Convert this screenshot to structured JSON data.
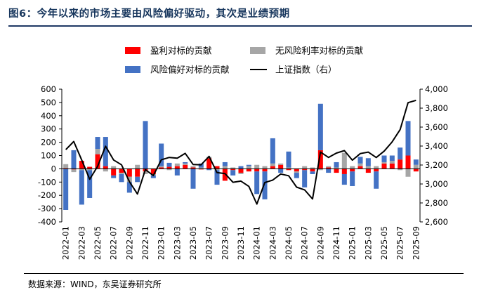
{
  "title": "图6：今年以来的市场主要由风险偏好驱动，其次是业绩预期",
  "source": "数据来源：WIND，东吴证券研究所",
  "colors": {
    "profit": "#ff0000",
    "riskfree": "#a6a6a6",
    "risk": "#4472c4",
    "index": "#000000",
    "title": "#17365d"
  },
  "chart_data": {
    "type": "bar",
    "stacked": true,
    "legend_position": "top",
    "categories": [
      "2022-01",
      "2022-02",
      "2022-03",
      "2022-04",
      "2022-05",
      "2022-06",
      "2022-07",
      "2022-08",
      "2022-09",
      "2022-10",
      "2022-11",
      "2022-12",
      "2023-01",
      "2023-02",
      "2023-03",
      "2023-04",
      "2023-05",
      "2023-06",
      "2023-07",
      "2023-08",
      "2023-09",
      "2023-10",
      "2023-11",
      "2023-12",
      "2024-01",
      "2024-02",
      "2024-03",
      "2024-04",
      "2024-05",
      "2024-06",
      "2024-07",
      "2024-08",
      "2024-09",
      "2024-10",
      "2024-11",
      "2024-12",
      "2025-01",
      "2025-02",
      "2025-03",
      "2025-04",
      "2025-05",
      "2025-06",
      "2025-07",
      "2025-08",
      "2025-09"
    ],
    "x_tick_labels": [
      "2022-01",
      "2022-03",
      "2022-05",
      "2022-07",
      "2022-09",
      "2022-11",
      "2023-01",
      "2023-03",
      "2023-05",
      "2023-07",
      "2023-09",
      "2023-11",
      "2024-01",
      "2024-03",
      "2024-05",
      "2024-07",
      "2024-09",
      "2024-11",
      "2025-01",
      "2025-03",
      "2025-05",
      "2025-07",
      "2025-09"
    ],
    "y_left": {
      "min": -400,
      "max": 600,
      "ticks": [
        -400,
        -300,
        -200,
        -100,
        0,
        100,
        200,
        300,
        400,
        500,
        600
      ]
    },
    "y_right": {
      "min": 2600,
      "max": 4000,
      "ticks": [
        "2,600",
        "2,800",
        "3,000",
        "3,200",
        "3,400",
        "3,600",
        "3,800",
        "4,000"
      ],
      "tick_values": [
        2600,
        2800,
        3000,
        3200,
        3400,
        3600,
        3800,
        4000
      ]
    },
    "series": [
      {
        "name": "盈利对标的贡献",
        "kind": "bar",
        "values": [
          5,
          -5,
          60,
          15,
          110,
          20,
          -50,
          -30,
          -60,
          -60,
          -20,
          -40,
          10,
          15,
          20,
          30,
          10,
          -5,
          80,
          20,
          -90,
          -10,
          -30,
          -20,
          -20,
          -20,
          20,
          30,
          -10,
          -20,
          -10,
          -20,
          140,
          10,
          -30,
          -40,
          -20,
          20,
          -30,
          -20,
          40,
          40,
          70,
          100,
          -20
        ]
      },
      {
        "name": "无风险利率对标的贡献",
        "kind": "bar",
        "values": [
          30,
          -20,
          -10,
          -10,
          40,
          -20,
          20,
          -10,
          -40,
          30,
          -20,
          -10,
          10,
          -10,
          20,
          10,
          10,
          10,
          10,
          -10,
          20,
          10,
          -10,
          20,
          30,
          20,
          20,
          10,
          10,
          -10,
          20,
          10,
          -10,
          10,
          10,
          120,
          20,
          20,
          20,
          20,
          10,
          20,
          -10,
          -60,
          30
        ]
      },
      {
        "name": "风险偏好对标的贡献",
        "kind": "bar",
        "values": [
          -310,
          140,
          -260,
          -210,
          90,
          220,
          -20,
          -60,
          -80,
          -40,
          360,
          -20,
          170,
          30,
          -50,
          10,
          -150,
          30,
          -10,
          -110,
          30,
          -40,
          20,
          10,
          -170,
          -210,
          190,
          -30,
          120,
          -40,
          -130,
          -20,
          350,
          -30,
          40,
          -80,
          -110,
          50,
          60,
          -130,
          50,
          40,
          90,
          260,
          40
        ]
      },
      {
        "name": "上证指数（右）",
        "kind": "line",
        "axis": "right",
        "values": [
          3362,
          3448,
          3253,
          3050,
          3186,
          3398,
          3253,
          3202,
          3024,
          2894,
          3151,
          3089,
          3255,
          3280,
          3272,
          3323,
          3205,
          3202,
          3291,
          3120,
          3110,
          3018,
          3030,
          2975,
          2788,
          3015,
          3041,
          3105,
          3087,
          2967,
          2938,
          2842,
          3336,
          3280,
          3326,
          3352,
          3251,
          3321,
          3336,
          3279,
          3347,
          3444,
          3573,
          3858,
          3882
        ]
      }
    ]
  }
}
